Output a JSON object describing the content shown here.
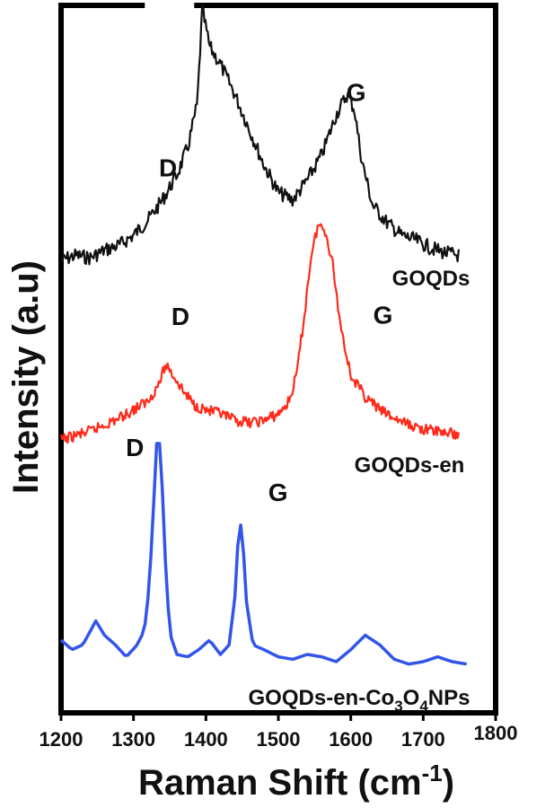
{
  "chart_data": {
    "type": "line",
    "xlabel": "Raman Shift (cm-1)",
    "xlabel_parts": {
      "main": "Raman Shift (cm",
      "sup": "-1",
      "close": ")"
    },
    "ylabel": "Intensity (a.u)",
    "xlim": [
      1200,
      1800
    ],
    "x_ticks": [
      "1200",
      "1300",
      "1400",
      "1500",
      "1600",
      "1700",
      "1800"
    ],
    "y_ticks_shown": false,
    "grid": false,
    "colors": {
      "GOQDs": "#111111",
      "GOQDs-en": "#ff2a1a",
      "GOQDs-en-Co3O4NPs": "#3355e8"
    },
    "series": [
      {
        "name": "GOQDs",
        "label_parts": {
          "main": "GOQDs"
        },
        "color": "#111111",
        "band": [
          0,
          1
        ],
        "x": [
          1200,
          1220,
          1240,
          1260,
          1280,
          1300,
          1320,
          1340,
          1360,
          1375,
          1388,
          1395,
          1405,
          1420,
          1440,
          1460,
          1480,
          1500,
          1520,
          1540,
          1560,
          1580,
          1595,
          1605,
          1615,
          1630,
          1650,
          1670,
          1690,
          1710,
          1730,
          1750
        ],
        "y": [
          0.0,
          0.02,
          0.01,
          0.04,
          0.06,
          0.1,
          0.16,
          0.24,
          0.34,
          0.45,
          0.62,
          1.0,
          0.85,
          0.78,
          0.66,
          0.52,
          0.38,
          0.27,
          0.24,
          0.32,
          0.42,
          0.58,
          0.66,
          0.6,
          0.4,
          0.22,
          0.15,
          0.1,
          0.08,
          0.05,
          0.03,
          0.02
        ],
        "peaks": [
          {
            "label": "D",
            "x": 1370
          },
          {
            "label": "G",
            "x": 1590
          }
        ]
      },
      {
        "name": "GOQDs-en",
        "label_parts": {
          "main": "GOQDs-en"
        },
        "color": "#ff2a1a",
        "band": [
          0,
          1
        ],
        "x": [
          1200,
          1220,
          1240,
          1260,
          1280,
          1300,
          1320,
          1335,
          1345,
          1355,
          1370,
          1385,
          1400,
          1420,
          1440,
          1460,
          1480,
          1500,
          1515,
          1525,
          1535,
          1545,
          1555,
          1565,
          1575,
          1585,
          1600,
          1620,
          1640,
          1660,
          1680,
          1700,
          1720,
          1740,
          1750
        ],
        "y": [
          0.0,
          0.02,
          0.04,
          0.07,
          0.1,
          0.14,
          0.18,
          0.26,
          0.35,
          0.3,
          0.22,
          0.16,
          0.14,
          0.12,
          0.09,
          0.08,
          0.09,
          0.12,
          0.18,
          0.3,
          0.55,
          0.85,
          1.0,
          0.97,
          0.82,
          0.55,
          0.3,
          0.2,
          0.14,
          0.1,
          0.07,
          0.05,
          0.04,
          0.03,
          0.02
        ],
        "peaks": [
          {
            "label": "D",
            "x": 1350
          },
          {
            "label": "G",
            "x": 1580
          }
        ]
      },
      {
        "name": "GOQDs-en-Co3O4NPs",
        "label_parts": {
          "main": "GOQDs-en-Co",
          "sub": "3",
          "main2": "O",
          "sub2": "4",
          "main3": "NPs"
        },
        "color": "#3355e8",
        "band": [
          0,
          1
        ],
        "x": [
          1200,
          1215,
          1230,
          1248,
          1260,
          1275,
          1290,
          1305,
          1315,
          1322,
          1328,
          1333,
          1338,
          1343,
          1350,
          1360,
          1375,
          1390,
          1405,
          1420,
          1432,
          1440,
          1446,
          1450,
          1456,
          1465,
          1480,
          1500,
          1520,
          1540,
          1560,
          1580,
          1600,
          1620,
          1640,
          1660,
          1680,
          1700,
          1720,
          1740,
          1760
        ],
        "y": [
          0.12,
          0.08,
          0.1,
          0.2,
          0.14,
          0.1,
          0.05,
          0.1,
          0.16,
          0.35,
          0.7,
          1.0,
          0.9,
          0.5,
          0.15,
          0.06,
          0.05,
          0.08,
          0.12,
          0.06,
          0.1,
          0.3,
          0.62,
          0.58,
          0.28,
          0.1,
          0.08,
          0.05,
          0.04,
          0.06,
          0.05,
          0.03,
          0.08,
          0.14,
          0.1,
          0.04,
          0.02,
          0.03,
          0.05,
          0.03,
          0.02
        ],
        "peaks": [
          {
            "label": "D",
            "x": 1333
          },
          {
            "label": "G",
            "x": 1450
          }
        ]
      }
    ]
  }
}
